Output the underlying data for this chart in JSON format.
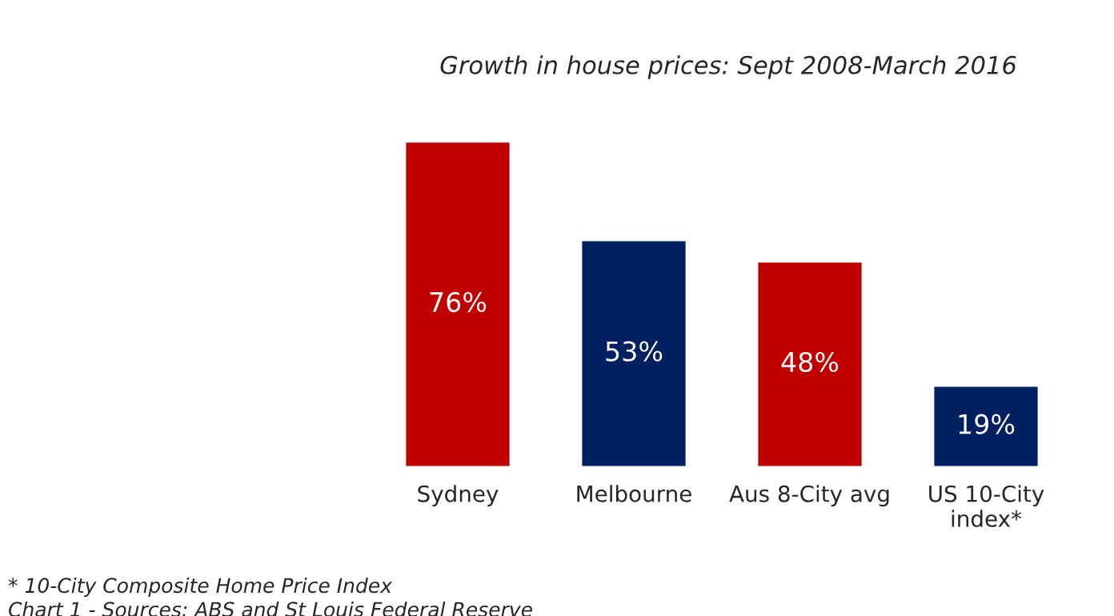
{
  "chart_data": {
    "type": "bar",
    "title": "Growth in house prices: Sept 2008-March 2016",
    "categories": [
      "Sydney",
      "Melbourne",
      "Aus 8-City avg",
      "US 10-City\nindex*"
    ],
    "values": [
      76,
      53,
      48,
      19
    ],
    "colors": [
      "#c00000",
      "#002060",
      "#c00000",
      "#002060"
    ],
    "value_labels": [
      "76%",
      "53%",
      "48%",
      "19%"
    ],
    "annotations": [
      "* 10-City Composite Home Price Index",
      "Chart 1 - Sources: ABS and St Louis Federal Reserve"
    ]
  }
}
